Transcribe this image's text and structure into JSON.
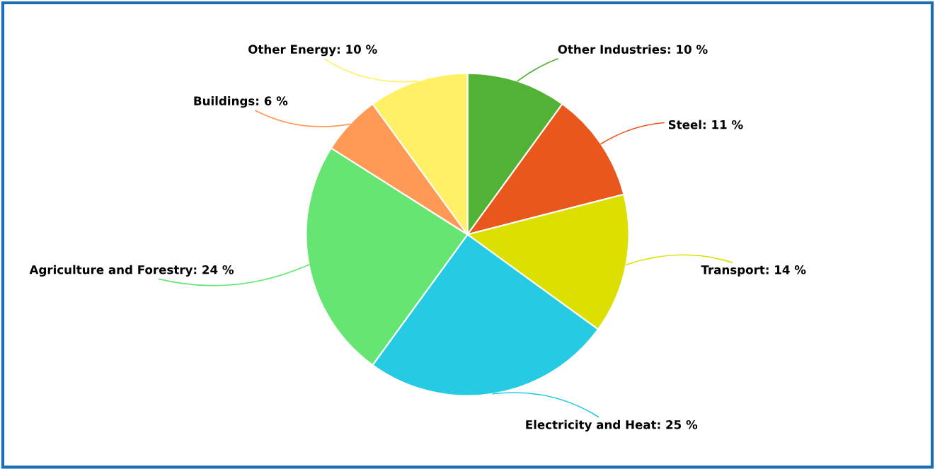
{
  "chart_data": {
    "type": "pie",
    "categories": [
      "Other Industries",
      "Steel",
      "Transport",
      "Electricity and Heat",
      "Agriculture and Forestry",
      "Buildings",
      "Other Energy"
    ],
    "values": [
      10,
      11,
      14,
      25,
      24,
      6,
      10
    ],
    "value_labels": [
      "10 %",
      "11 %",
      "14 %",
      "25 %",
      "24 %",
      "6 %",
      "10 %"
    ],
    "colors": [
      "#52b236",
      "#ea571c",
      "#dce000",
      "#26cae3",
      "#66e572",
      "#ff9955",
      "#fff066"
    ],
    "legend": false
  }
}
